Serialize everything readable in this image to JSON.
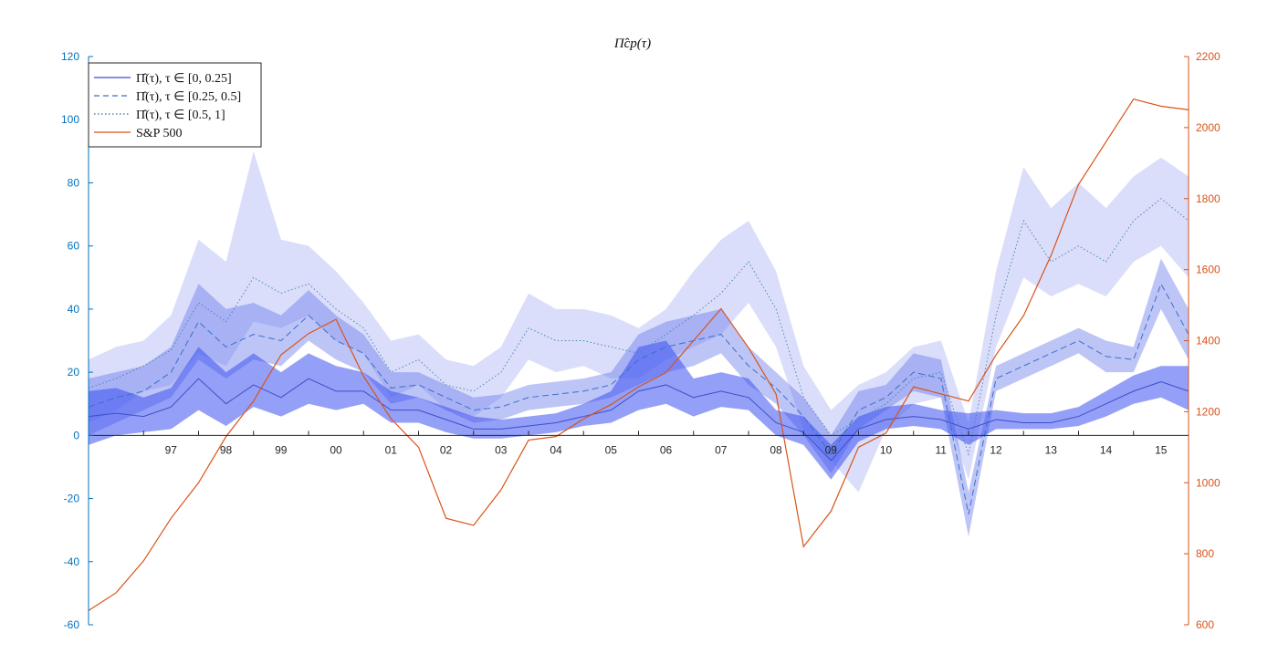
{
  "chart_data": {
    "type": "line",
    "title": "Π̂cp(τ)",
    "x_tick_labels": [
      "97",
      "98",
      "99",
      "00",
      "01",
      "02",
      "03",
      "04",
      "05",
      "06",
      "07",
      "08",
      "09",
      "10",
      "11",
      "12",
      "13",
      "14",
      "15"
    ],
    "x_ticks_year": [
      1997,
      1998,
      1999,
      2000,
      2001,
      2002,
      2003,
      2004,
      2005,
      2006,
      2007,
      2008,
      2009,
      2010,
      2011,
      2012,
      2013,
      2014,
      2015
    ],
    "xlim": [
      1996.0,
      2016.0
    ],
    "left_axis": {
      "ylim": [
        -60,
        120
      ],
      "ticks": [
        -60,
        -40,
        -20,
        0,
        20,
        40,
        60,
        80,
        100,
        120
      ],
      "tick_labels": [
        "-60",
        "-40",
        "-20",
        "0",
        "20",
        "40",
        "60",
        "80",
        "100",
        "120"
      ],
      "color": "#0072BD"
    },
    "right_axis": {
      "ylim": [
        600,
        2200
      ],
      "ticks": [
        600,
        800,
        1000,
        1200,
        1400,
        1600,
        1800,
        2000,
        2200
      ],
      "tick_labels": [
        "600",
        "800",
        "1000",
        "1200",
        "1400",
        "1600",
        "1800",
        "2000",
        "2200"
      ],
      "color": "#D95319"
    },
    "legend": {
      "position": "top-left",
      "entries": [
        {
          "label": "Π̂(τ), τ ∈ [0, 0.25]",
          "style": "solid",
          "color": "#3c4fc8"
        },
        {
          "label": "Π̂(τ), τ ∈ [0.25, 0.5]",
          "style": "dashed",
          "color": "#3c6fc8"
        },
        {
          "label": "Π̂(τ), τ ∈ [0.5, 1]",
          "style": "dotted",
          "color": "#4a8ab0"
        },
        {
          "label": "S&P 500",
          "style": "solid",
          "color": "#D95319"
        }
      ]
    },
    "x": [
      1996.0,
      1996.5,
      1997.0,
      1997.5,
      1998.0,
      1998.5,
      1999.0,
      1999.5,
      2000.0,
      2000.5,
      2001.0,
      2001.5,
      2002.0,
      2002.5,
      2003.0,
      2003.5,
      2004.0,
      2004.5,
      2005.0,
      2005.5,
      2006.0,
      2006.5,
      2007.0,
      2007.5,
      2008.0,
      2008.5,
      2009.0,
      2009.5,
      2010.0,
      2010.5,
      2011.0,
      2011.5,
      2012.0,
      2012.5,
      2013.0,
      2013.5,
      2014.0,
      2014.5,
      2015.0,
      2015.5,
      2016.0
    ],
    "series": [
      {
        "name": "Π̂(τ), τ ∈ [0, 0.25]",
        "axis": "left",
        "values": [
          6,
          7,
          6,
          9,
          18,
          10,
          16,
          12,
          18,
          14,
          14,
          8,
          8,
          5,
          2,
          2,
          3,
          4,
          6,
          8,
          14,
          16,
          12,
          14,
          12,
          4,
          1,
          -8,
          2,
          5,
          6,
          5,
          2,
          5,
          4,
          4,
          6,
          10,
          14,
          17,
          14
        ],
        "band_low": [
          -3,
          0,
          1,
          2,
          8,
          3,
          9,
          6,
          10,
          8,
          10,
          4,
          4,
          1,
          -1,
          -1,
          0,
          1,
          3,
          4,
          8,
          10,
          6,
          9,
          8,
          0,
          -3,
          -14,
          -2,
          2,
          3,
          2,
          -3,
          2,
          2,
          2,
          3,
          6,
          10,
          12,
          8
        ],
        "band_high": [
          14,
          15,
          12,
          15,
          28,
          20,
          26,
          20,
          26,
          22,
          20,
          14,
          12,
          9,
          6,
          5,
          6,
          7,
          10,
          14,
          28,
          30,
          18,
          20,
          18,
          8,
          6,
          -3,
          6,
          9,
          10,
          8,
          7,
          8,
          7,
          7,
          9,
          14,
          19,
          22,
          22
        ]
      },
      {
        "name": "Π̂(τ), τ ∈ [0.25, 0.5]",
        "axis": "left",
        "values": [
          9,
          12,
          14,
          20,
          36,
          28,
          32,
          30,
          38,
          30,
          26,
          15,
          16,
          12,
          8,
          9,
          12,
          13,
          14,
          16,
          24,
          28,
          30,
          32,
          22,
          15,
          6,
          -6,
          8,
          12,
          20,
          18,
          -25,
          18,
          22,
          26,
          30,
          25,
          24,
          48,
          32
        ],
        "band_low": [
          0,
          4,
          8,
          12,
          24,
          18,
          24,
          22,
          30,
          24,
          20,
          10,
          12,
          8,
          4,
          5,
          8,
          9,
          10,
          12,
          16,
          20,
          22,
          26,
          16,
          10,
          0,
          -12,
          2,
          8,
          14,
          12,
          -32,
          14,
          18,
          22,
          26,
          20,
          20,
          40,
          24
        ],
        "band_high": [
          18,
          20,
          22,
          28,
          48,
          40,
          42,
          38,
          46,
          38,
          32,
          20,
          20,
          16,
          12,
          13,
          16,
          17,
          18,
          20,
          32,
          36,
          38,
          40,
          28,
          20,
          12,
          0,
          14,
          16,
          26,
          24,
          -18,
          22,
          26,
          30,
          34,
          30,
          28,
          56,
          40
        ]
      },
      {
        "name": "Π̂(τ), τ ∈ [0.5, 1]",
        "axis": "left",
        "values": [
          15,
          18,
          22,
          27,
          42,
          36,
          50,
          45,
          48,
          40,
          34,
          20,
          24,
          16,
          14,
          20,
          34,
          30,
          30,
          28,
          26,
          32,
          38,
          45,
          55,
          40,
          12,
          0,
          5,
          10,
          18,
          20,
          -6,
          38,
          68,
          55,
          60,
          55,
          68,
          75,
          68
        ],
        "band_low": [
          4,
          8,
          14,
          16,
          26,
          22,
          36,
          34,
          38,
          30,
          26,
          12,
          16,
          8,
          6,
          12,
          24,
          20,
          22,
          18,
          18,
          24,
          28,
          32,
          42,
          28,
          2,
          -8,
          -18,
          2,
          10,
          12,
          -14,
          28,
          50,
          44,
          48,
          44,
          55,
          60,
          50
        ],
        "band_high": [
          24,
          28,
          30,
          38,
          62,
          55,
          90,
          62,
          60,
          52,
          42,
          30,
          32,
          24,
          22,
          28,
          45,
          40,
          40,
          38,
          34,
          40,
          52,
          62,
          68,
          52,
          22,
          8,
          16,
          20,
          28,
          30,
          4,
          52,
          85,
          72,
          80,
          72,
          82,
          88,
          82
        ]
      },
      {
        "name": "S&P 500",
        "axis": "right",
        "values": [
          640,
          690,
          780,
          900,
          1000,
          1130,
          1230,
          1360,
          1420,
          1460,
          1300,
          1180,
          1100,
          900,
          880,
          980,
          1120,
          1130,
          1180,
          1220,
          1270,
          1310,
          1400,
          1490,
          1380,
          1250,
          820,
          920,
          1100,
          1140,
          1270,
          1250,
          1230,
          1360,
          1470,
          1640,
          1840,
          1960,
          2080,
          2060,
          2050
        ]
      }
    ]
  }
}
